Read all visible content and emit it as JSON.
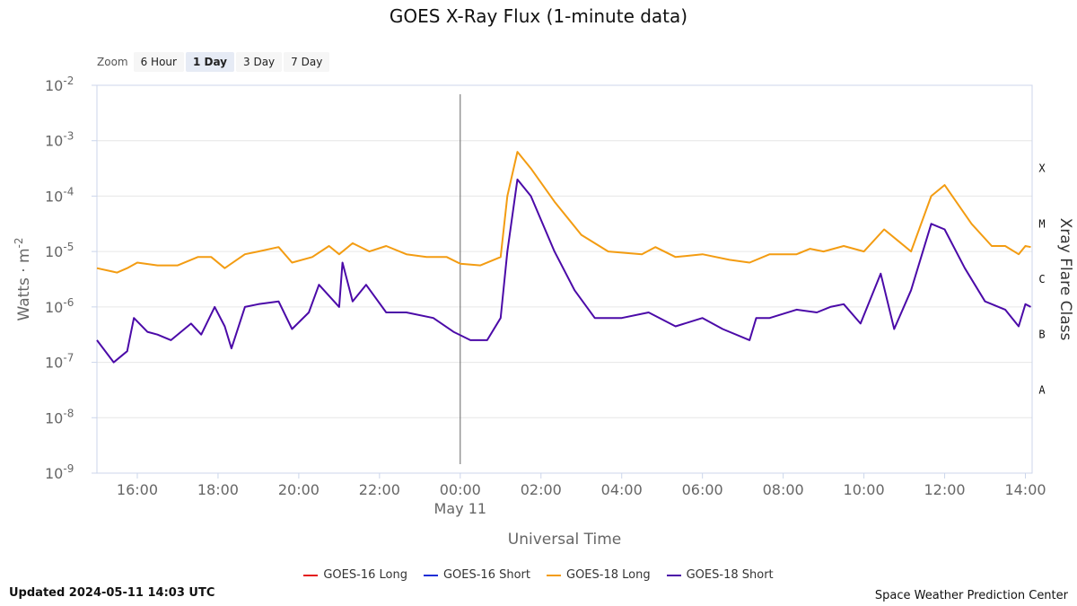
{
  "chart_data": {
    "type": "line",
    "title": "GOES X-Ray Flux (1-minute data)",
    "xlabel": "Universal Time",
    "ylabel": "Watts · m",
    "ylabel_sup": "-2",
    "y2label": "Xray Flare Class",
    "y_scale": "log",
    "ylim_exponent": [
      -9,
      -2
    ],
    "y_ticks": [
      {
        "base": "10",
        "exp": "-2",
        "value": -2
      },
      {
        "base": "10",
        "exp": "-3",
        "value": -3
      },
      {
        "base": "10",
        "exp": "-4",
        "value": -4
      },
      {
        "base": "10",
        "exp": "-5",
        "value": -5
      },
      {
        "base": "10",
        "exp": "-6",
        "value": -6
      },
      {
        "base": "10",
        "exp": "-7",
        "value": -7
      },
      {
        "base": "10",
        "exp": "-8",
        "value": -8
      },
      {
        "base": "10",
        "exp": "-9",
        "value": -9
      }
    ],
    "flare_classes": [
      {
        "label": "X",
        "value": -3.5
      },
      {
        "label": "M",
        "value": -4.5
      },
      {
        "label": "C",
        "value": -5.5
      },
      {
        "label": "B",
        "value": -6.5
      },
      {
        "label": "A",
        "value": -7.5
      }
    ],
    "x_range": [
      "2024-05-10 15:00",
      "2024-05-11 14:10"
    ],
    "x_ticks": [
      {
        "label": "16:00",
        "t": "2024-05-10 16:00"
      },
      {
        "label": "18:00",
        "t": "2024-05-10 18:00"
      },
      {
        "label": "20:00",
        "t": "2024-05-10 20:00"
      },
      {
        "label": "22:00",
        "t": "2024-05-10 22:00"
      },
      {
        "label": "00:00",
        "t": "2024-05-11 00:00"
      },
      {
        "label": "02:00",
        "t": "2024-05-11 02:00"
      },
      {
        "label": "04:00",
        "t": "2024-05-11 04:00"
      },
      {
        "label": "06:00",
        "t": "2024-05-11 06:00"
      },
      {
        "label": "08:00",
        "t": "2024-05-11 08:00"
      },
      {
        "label": "10:00",
        "t": "2024-05-11 10:00"
      },
      {
        "label": "12:00",
        "t": "2024-05-11 12:00"
      },
      {
        "label": "14:00",
        "t": "2024-05-11 14:00"
      }
    ],
    "day_marker": {
      "label": "May 11",
      "t": "2024-05-11 00:00"
    },
    "grid": true,
    "legend_position": "bottom",
    "series": [
      {
        "name": "GOES-16 Long",
        "color": "#e41a1c",
        "points": []
      },
      {
        "name": "GOES-16 Short",
        "color": "#1f2ed6",
        "points": []
      },
      {
        "name": "GOES-18 Long",
        "color": "#f39c12",
        "points": [
          [
            "2024-05-10 15:00",
            -5.3
          ],
          [
            "2024-05-10 15:30",
            -5.38
          ],
          [
            "2024-05-10 15:45",
            -5.3
          ],
          [
            "2024-05-10 16:00",
            -5.2
          ],
          [
            "2024-05-10 16:30",
            -5.25
          ],
          [
            "2024-05-10 17:00",
            -5.25
          ],
          [
            "2024-05-10 17:30",
            -5.1
          ],
          [
            "2024-05-10 17:50",
            -5.1
          ],
          [
            "2024-05-10 18:10",
            -5.3
          ],
          [
            "2024-05-10 18:40",
            -5.05
          ],
          [
            "2024-05-10 19:00",
            -5.0
          ],
          [
            "2024-05-10 19:30",
            -4.92
          ],
          [
            "2024-05-10 19:50",
            -5.2
          ],
          [
            "2024-05-10 20:20",
            -5.1
          ],
          [
            "2024-05-10 20:45",
            -4.9
          ],
          [
            "2024-05-10 21:00",
            -5.05
          ],
          [
            "2024-05-10 21:20",
            -4.85
          ],
          [
            "2024-05-10 21:45",
            -5.0
          ],
          [
            "2024-05-10 22:10",
            -4.9
          ],
          [
            "2024-05-10 22:40",
            -5.05
          ],
          [
            "2024-05-10 23:10",
            -5.1
          ],
          [
            "2024-05-10 23:40",
            -5.1
          ],
          [
            "2024-05-11 00:00",
            -5.22
          ],
          [
            "2024-05-11 00:30",
            -5.25
          ],
          [
            "2024-05-11 01:00",
            -5.1
          ],
          [
            "2024-05-11 01:10",
            -4.0
          ],
          [
            "2024-05-11 01:25",
            -3.2
          ],
          [
            "2024-05-11 01:45",
            -3.5
          ],
          [
            "2024-05-11 02:20",
            -4.1
          ],
          [
            "2024-05-11 03:00",
            -4.7
          ],
          [
            "2024-05-11 03:40",
            -5.0
          ],
          [
            "2024-05-11 04:30",
            -5.05
          ],
          [
            "2024-05-11 04:50",
            -4.92
          ],
          [
            "2024-05-11 05:20",
            -5.1
          ],
          [
            "2024-05-11 06:00",
            -5.05
          ],
          [
            "2024-05-11 06:40",
            -5.15
          ],
          [
            "2024-05-11 07:10",
            -5.2
          ],
          [
            "2024-05-11 07:40",
            -5.05
          ],
          [
            "2024-05-11 08:20",
            -5.05
          ],
          [
            "2024-05-11 08:40",
            -4.95
          ],
          [
            "2024-05-11 09:00",
            -5.0
          ],
          [
            "2024-05-11 09:30",
            -4.9
          ],
          [
            "2024-05-11 10:00",
            -5.0
          ],
          [
            "2024-05-11 10:30",
            -4.6
          ],
          [
            "2024-05-11 10:50",
            -4.8
          ],
          [
            "2024-05-11 11:10",
            -5.0
          ],
          [
            "2024-05-11 11:40",
            -4.0
          ],
          [
            "2024-05-11 12:00",
            -3.8
          ],
          [
            "2024-05-11 12:40",
            -4.5
          ],
          [
            "2024-05-11 13:10",
            -4.9
          ],
          [
            "2024-05-11 13:30",
            -4.9
          ],
          [
            "2024-05-11 13:50",
            -5.05
          ],
          [
            "2024-05-11 14:00",
            -4.9
          ],
          [
            "2024-05-11 14:08",
            -4.92
          ]
        ]
      },
      {
        "name": "GOES-18 Short",
        "color": "#4b0aa8",
        "points": [
          [
            "2024-05-10 15:00",
            -6.6
          ],
          [
            "2024-05-10 15:25",
            -7.0
          ],
          [
            "2024-05-10 15:45",
            -6.8
          ],
          [
            "2024-05-10 15:55",
            -6.2
          ],
          [
            "2024-05-10 16:15",
            -6.45
          ],
          [
            "2024-05-10 16:30",
            -6.5
          ],
          [
            "2024-05-10 16:50",
            -6.6
          ],
          [
            "2024-05-10 17:20",
            -6.3
          ],
          [
            "2024-05-10 17:35",
            -6.5
          ],
          [
            "2024-05-10 17:55",
            -6.0
          ],
          [
            "2024-05-10 18:10",
            -6.35
          ],
          [
            "2024-05-10 18:20",
            -6.75
          ],
          [
            "2024-05-10 18:40",
            -6.0
          ],
          [
            "2024-05-10 19:00",
            -5.95
          ],
          [
            "2024-05-10 19:30",
            -5.9
          ],
          [
            "2024-05-10 19:50",
            -6.4
          ],
          [
            "2024-05-10 20:15",
            -6.1
          ],
          [
            "2024-05-10 20:30",
            -5.6
          ],
          [
            "2024-05-10 21:00",
            -6.0
          ],
          [
            "2024-05-10 21:05",
            -5.2
          ],
          [
            "2024-05-10 21:20",
            -5.9
          ],
          [
            "2024-05-10 21:40",
            -5.6
          ],
          [
            "2024-05-10 22:10",
            -6.1
          ],
          [
            "2024-05-10 22:40",
            -6.1
          ],
          [
            "2024-05-10 23:20",
            -6.2
          ],
          [
            "2024-05-10 23:50",
            -6.45
          ],
          [
            "2024-05-11 00:15",
            -6.6
          ],
          [
            "2024-05-11 00:40",
            -6.6
          ],
          [
            "2024-05-11 01:00",
            -6.2
          ],
          [
            "2024-05-11 01:10",
            -5.0
          ],
          [
            "2024-05-11 01:25",
            -3.7
          ],
          [
            "2024-05-11 01:45",
            -4.0
          ],
          [
            "2024-05-11 02:20",
            -5.0
          ],
          [
            "2024-05-11 02:50",
            -5.7
          ],
          [
            "2024-05-11 03:20",
            -6.2
          ],
          [
            "2024-05-11 04:00",
            -6.2
          ],
          [
            "2024-05-11 04:40",
            -6.1
          ],
          [
            "2024-05-11 05:20",
            -6.35
          ],
          [
            "2024-05-11 06:00",
            -6.2
          ],
          [
            "2024-05-11 06:30",
            -6.4
          ],
          [
            "2024-05-11 07:10",
            -6.6
          ],
          [
            "2024-05-11 07:20",
            -6.2
          ],
          [
            "2024-05-11 07:40",
            -6.2
          ],
          [
            "2024-05-11 08:20",
            -6.05
          ],
          [
            "2024-05-11 08:50",
            -6.1
          ],
          [
            "2024-05-11 09:10",
            -6.0
          ],
          [
            "2024-05-11 09:30",
            -5.95
          ],
          [
            "2024-05-11 09:55",
            -6.3
          ],
          [
            "2024-05-11 10:25",
            -5.4
          ],
          [
            "2024-05-11 10:45",
            -6.4
          ],
          [
            "2024-05-11 11:10",
            -5.7
          ],
          [
            "2024-05-11 11:40",
            -4.5
          ],
          [
            "2024-05-11 12:00",
            -4.6
          ],
          [
            "2024-05-11 12:30",
            -5.3
          ],
          [
            "2024-05-11 13:00",
            -5.9
          ],
          [
            "2024-05-11 13:30",
            -6.05
          ],
          [
            "2024-05-11 13:50",
            -6.35
          ],
          [
            "2024-05-11 14:00",
            -5.95
          ],
          [
            "2024-05-11 14:08",
            -6.0
          ]
        ]
      }
    ]
  },
  "zoom": {
    "label": "Zoom",
    "buttons": [
      "6 Hour",
      "1 Day",
      "3 Day",
      "7 Day"
    ],
    "active": "1 Day"
  },
  "footer": {
    "updated": "Updated 2024-05-11 14:03 UTC",
    "credit": "Space Weather Prediction Center"
  }
}
